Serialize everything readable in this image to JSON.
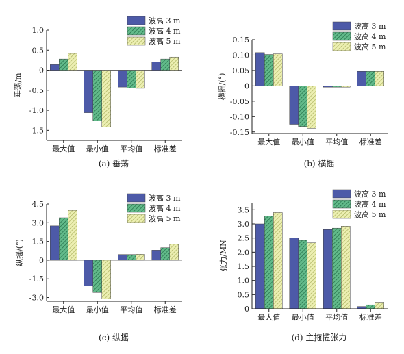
{
  "chart_data": [
    {
      "type": "bar",
      "caption": "(a) 垂荡",
      "ylabel": "垂荡/m",
      "categories": [
        "最大值",
        "最小值",
        "平均值",
        "标准差"
      ],
      "ylim": [
        -1.75,
        1.0
      ],
      "yticks": [
        -1.5,
        -1.0,
        -0.5,
        0,
        0.5,
        1.0
      ],
      "ytick_labels": [
        "-1.5",
        "-1.0",
        "-0.5",
        "0",
        "0.5",
        "1.0"
      ],
      "series": [
        {
          "name": "波高 3 m",
          "values": [
            0.14,
            -1.06,
            -0.42,
            0.21
          ]
        },
        {
          "name": "波高 4 m",
          "values": [
            0.28,
            -1.26,
            -0.44,
            0.28
          ]
        },
        {
          "name": "波高 5 m",
          "values": [
            0.42,
            -1.42,
            -0.45,
            0.33
          ]
        }
      ]
    },
    {
      "type": "bar",
      "caption": "(b) 横摇",
      "ylabel": "横摇/(°)",
      "categories": [
        "最大值",
        "最小值",
        "平均值",
        "标准差"
      ],
      "ylim": [
        -0.155,
        0.15
      ],
      "yticks": [
        -0.15,
        -0.1,
        -0.05,
        0,
        0.05,
        0.1,
        0.15
      ],
      "ytick_labels": [
        "-0.15",
        "-0.10",
        "-0.05",
        "0",
        "0.05",
        "0.10",
        "0.15"
      ],
      "series": [
        {
          "name": "波高 3 m",
          "values": [
            0.108,
            -0.125,
            -0.004,
            0.047
          ]
        },
        {
          "name": "波高 4 m",
          "values": [
            0.102,
            -0.132,
            -0.004,
            0.047
          ]
        },
        {
          "name": "波高 5 m",
          "values": [
            0.104,
            -0.138,
            -0.004,
            0.047
          ]
        }
      ]
    },
    {
      "type": "bar",
      "caption": "(c) 纵摇",
      "ylabel": "纵摇/(°)",
      "categories": [
        "最大值",
        "最小值",
        "平均值",
        "标准差"
      ],
      "ylim": [
        -3.3,
        4.5
      ],
      "yticks": [
        -3.0,
        -1.5,
        0,
        1.5,
        3.0,
        4.5
      ],
      "ytick_labels": [
        "-3.0",
        "-1.5",
        "0",
        "1.5",
        "3.0",
        "4.5"
      ],
      "series": [
        {
          "name": "波高 3 m",
          "values": [
            2.75,
            -2.05,
            0.45,
            0.8
          ]
        },
        {
          "name": "波高 4 m",
          "values": [
            3.4,
            -2.6,
            0.45,
            1.0
          ]
        },
        {
          "name": "波高 5 m",
          "values": [
            4.0,
            -3.1,
            0.47,
            1.28
          ]
        }
      ]
    },
    {
      "type": "bar",
      "caption": "(d) 主拖揽张力",
      "ylabel": "张力/MN",
      "categories": [
        "最大值",
        "最小值",
        "平均值",
        "标准差"
      ],
      "ylim": [
        0,
        3.75
      ],
      "yticks": [
        0,
        0.5,
        1.0,
        1.5,
        2.0,
        2.5,
        3.0,
        3.5
      ],
      "ytick_labels": [
        "0",
        "0.5",
        "1.0",
        "1.5",
        "2.0",
        "2.5",
        "3.0",
        "3.5"
      ],
      "series": [
        {
          "name": "波高 3 m",
          "values": [
            3.0,
            2.5,
            2.8,
            0.08
          ]
        },
        {
          "name": "波高 4 m",
          "values": [
            3.28,
            2.42,
            2.85,
            0.14
          ]
        },
        {
          "name": "波高 5 m",
          "values": [
            3.4,
            2.33,
            2.92,
            0.23
          ]
        }
      ]
    }
  ],
  "colors": {
    "series1": "#4d5aa8",
    "series2": "#62ba8a",
    "series2_hatch": "#1f6b45",
    "series3": "#ecefb2",
    "series3_hatch": "#a9b05c"
  }
}
